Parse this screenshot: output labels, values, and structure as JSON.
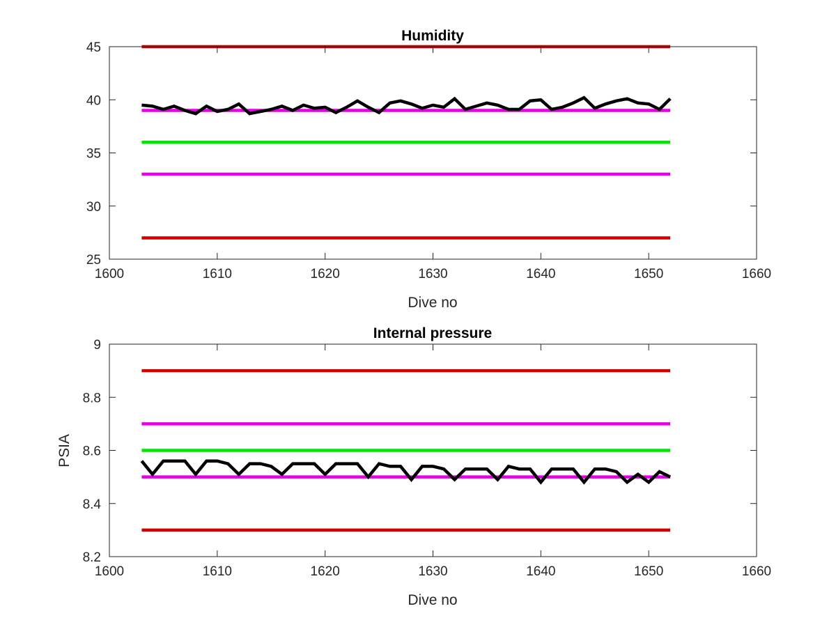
{
  "chart_data": [
    {
      "type": "line",
      "title": "Humidity",
      "xlabel": "Dive no",
      "ylabel": "",
      "xlim": [
        1600,
        1660
      ],
      "ylim": [
        25,
        45
      ],
      "xticks": [
        1600,
        1610,
        1620,
        1630,
        1640,
        1650,
        1660
      ],
      "yticks": [
        25,
        30,
        35,
        40,
        45
      ],
      "grid": false,
      "series": [
        {
          "color": "#d40000",
          "x": [
            1603,
            1652
          ],
          "values": [
            45,
            45
          ]
        },
        {
          "color": "#e600e6",
          "x": [
            1603,
            1652
          ],
          "values": [
            39,
            39
          ]
        },
        {
          "color": "#00e600",
          "x": [
            1603,
            1652
          ],
          "values": [
            36,
            36
          ]
        },
        {
          "color": "#e600e6",
          "x": [
            1603,
            1652
          ],
          "values": [
            33,
            33
          ]
        },
        {
          "color": "#d40000",
          "x": [
            1603,
            1652
          ],
          "values": [
            27,
            27
          ]
        },
        {
          "color": "#000000",
          "x": [
            1603,
            1604,
            1605,
            1606,
            1607,
            1608,
            1609,
            1610,
            1611,
            1612,
            1613,
            1614,
            1615,
            1616,
            1617,
            1618,
            1619,
            1620,
            1621,
            1622,
            1623,
            1624,
            1625,
            1626,
            1627,
            1628,
            1629,
            1630,
            1631,
            1632,
            1633,
            1634,
            1635,
            1636,
            1637,
            1638,
            1639,
            1640,
            1641,
            1642,
            1643,
            1644,
            1645,
            1646,
            1647,
            1648,
            1649,
            1650,
            1651,
            1652
          ],
          "values": [
            39.5,
            39.4,
            39.1,
            39.4,
            39.0,
            38.7,
            39.4,
            38.9,
            39.1,
            39.6,
            38.7,
            38.9,
            39.1,
            39.4,
            39.0,
            39.5,
            39.2,
            39.3,
            38.8,
            39.3,
            39.9,
            39.3,
            38.8,
            39.7,
            39.9,
            39.6,
            39.2,
            39.5,
            39.3,
            40.1,
            39.1,
            39.4,
            39.7,
            39.5,
            39.1,
            39.1,
            39.9,
            40.0,
            39.1,
            39.3,
            39.7,
            40.2,
            39.2,
            39.6,
            39.9,
            40.1,
            39.7,
            39.6,
            39.1,
            40.1
          ]
        }
      ]
    },
    {
      "type": "line",
      "title": "Internal pressure",
      "xlabel": "Dive no",
      "ylabel": "PSIA",
      "xlim": [
        1600,
        1660
      ],
      "ylim": [
        8.2,
        9
      ],
      "xticks": [
        1600,
        1610,
        1620,
        1630,
        1640,
        1650,
        1660
      ],
      "yticks": [
        8.2,
        8.4,
        8.6,
        8.8,
        9
      ],
      "grid": false,
      "series": [
        {
          "color": "#d40000",
          "x": [
            1603,
            1652
          ],
          "values": [
            8.9,
            8.9
          ]
        },
        {
          "color": "#e600e6",
          "x": [
            1603,
            1652
          ],
          "values": [
            8.7,
            8.7
          ]
        },
        {
          "color": "#00e600",
          "x": [
            1603,
            1652
          ],
          "values": [
            8.6,
            8.6
          ]
        },
        {
          "color": "#e600e6",
          "x": [
            1603,
            1652
          ],
          "values": [
            8.5,
            8.5
          ]
        },
        {
          "color": "#d40000",
          "x": [
            1603,
            1652
          ],
          "values": [
            8.3,
            8.3
          ]
        },
        {
          "color": "#000000",
          "x": [
            1603,
            1604,
            1605,
            1606,
            1607,
            1608,
            1609,
            1610,
            1611,
            1612,
            1613,
            1614,
            1615,
            1616,
            1617,
            1618,
            1619,
            1620,
            1621,
            1622,
            1623,
            1624,
            1625,
            1626,
            1627,
            1628,
            1629,
            1630,
            1631,
            1632,
            1633,
            1634,
            1635,
            1636,
            1637,
            1638,
            1639,
            1640,
            1641,
            1642,
            1643,
            1644,
            1645,
            1646,
            1647,
            1648,
            1649,
            1650,
            1651,
            1652
          ],
          "values": [
            8.56,
            8.51,
            8.56,
            8.56,
            8.56,
            8.51,
            8.56,
            8.56,
            8.55,
            8.51,
            8.55,
            8.55,
            8.54,
            8.51,
            8.55,
            8.55,
            8.55,
            8.51,
            8.55,
            8.55,
            8.55,
            8.5,
            8.55,
            8.54,
            8.54,
            8.49,
            8.54,
            8.54,
            8.53,
            8.49,
            8.53,
            8.53,
            8.53,
            8.49,
            8.54,
            8.53,
            8.53,
            8.48,
            8.53,
            8.53,
            8.53,
            8.48,
            8.53,
            8.53,
            8.52,
            8.48,
            8.51,
            8.48,
            8.52,
            8.5
          ]
        }
      ]
    }
  ]
}
